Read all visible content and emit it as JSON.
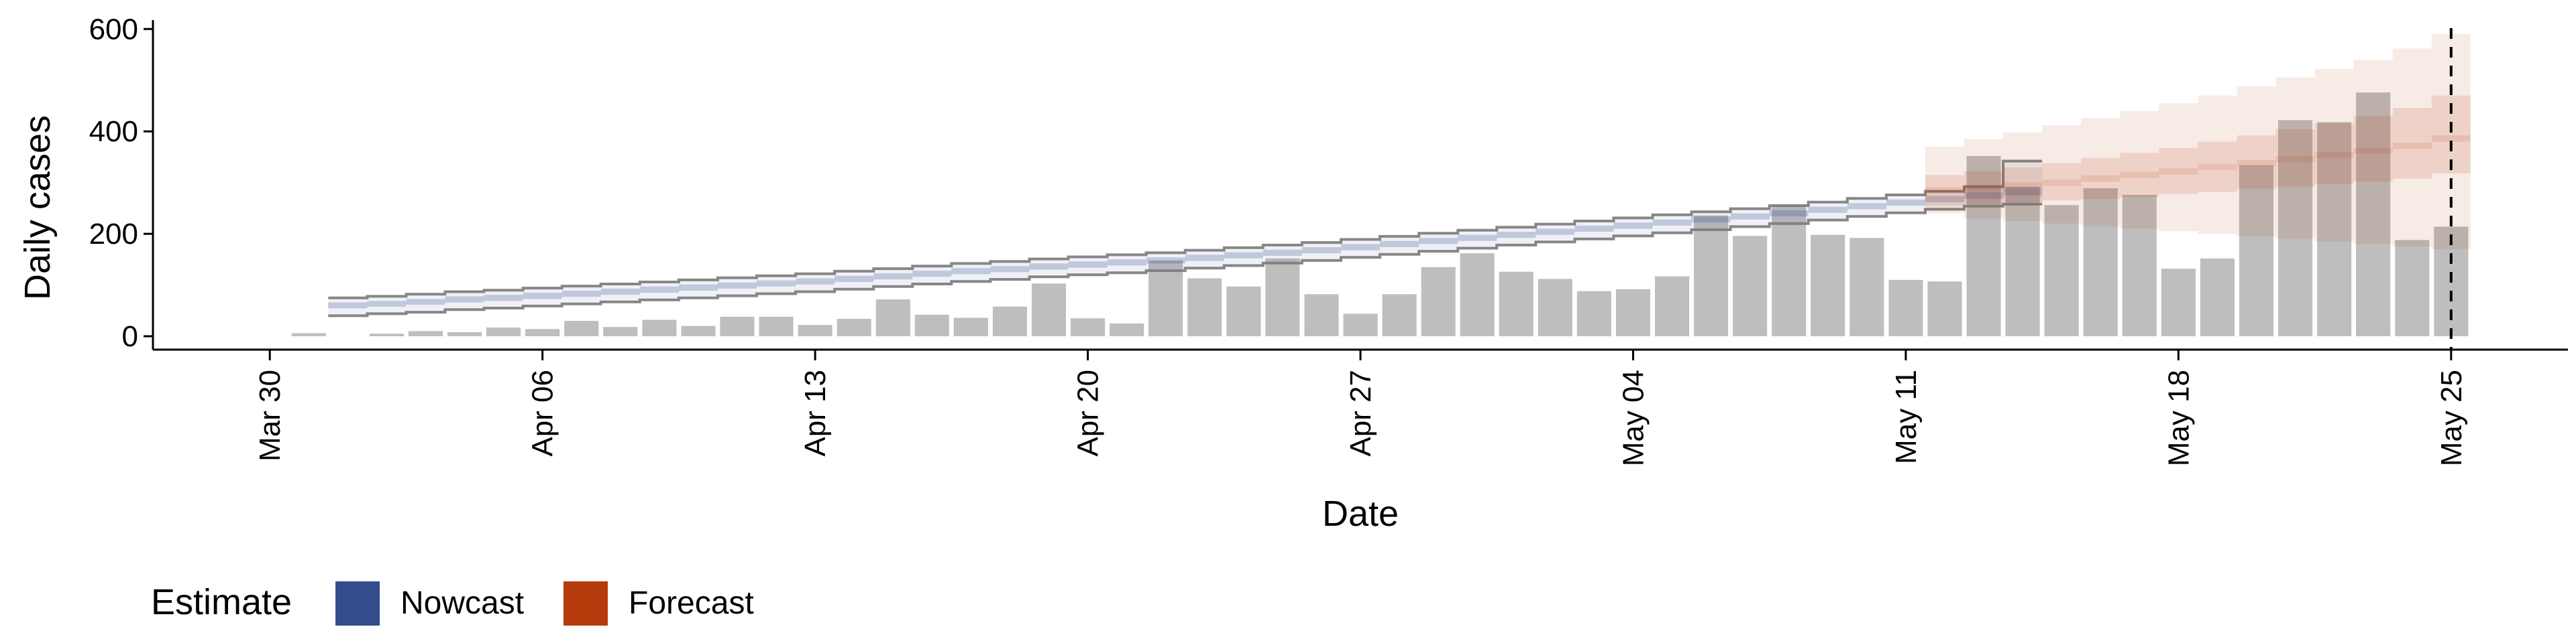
{
  "chart_data": {
    "type": "bar",
    "xlabel": "Date",
    "ylabel": "Daily cases",
    "ylim": [
      0,
      620
    ],
    "yticks": [
      "0",
      "200",
      "400",
      "600"
    ],
    "ytick_values": [
      0,
      200,
      400,
      600
    ],
    "x_range": [
      "2020-03-27",
      "2020-05-28"
    ],
    "xticks": [
      {
        "date": "2020-03-30",
        "label": "Mar 30"
      },
      {
        "date": "2020-04-06",
        "label": "Apr 06"
      },
      {
        "date": "2020-04-13",
        "label": "Apr 13"
      },
      {
        "date": "2020-04-20",
        "label": "Apr 20"
      },
      {
        "date": "2020-04-27",
        "label": "Apr 27"
      },
      {
        "date": "2020-05-04",
        "label": "May 04"
      },
      {
        "date": "2020-05-11",
        "label": "May 11"
      },
      {
        "date": "2020-05-18",
        "label": "May 18"
      },
      {
        "date": "2020-05-25",
        "label": "May 25"
      }
    ],
    "reference_line": {
      "date": "2020-05-25",
      "style": "dashed"
    },
    "grid": false,
    "legend": {
      "title": "Estimate",
      "position": "bottom-left",
      "entries": [
        {
          "label": "Nowcast",
          "color": "#344b8c"
        },
        {
          "label": "Forecast",
          "color": "#b53a0c"
        }
      ]
    },
    "bar_color": "#bebebe",
    "bars": {
      "start_date": "2020-03-31",
      "values": [
        6,
        0,
        5,
        10,
        8,
        17,
        14,
        30,
        18,
        32,
        20,
        38,
        38,
        22,
        34,
        72,
        42,
        36,
        58,
        103,
        35,
        25,
        148,
        113,
        97,
        152,
        82,
        44,
        82,
        135,
        162,
        126,
        112,
        88,
        92,
        117,
        236,
        196,
        256,
        198,
        192,
        110,
        107,
        352,
        292,
        256,
        289,
        276,
        132,
        152,
        334,
        422,
        418,
        476,
        188,
        214
      ]
    },
    "series": [
      {
        "name": "Nowcast",
        "color": "#344b8c",
        "start_date": "2020-04-01",
        "median": [
          60,
          63,
          67,
          72,
          75,
          79,
          83,
          87,
          91,
          95,
          99,
          103,
          107,
          112,
          117,
          122,
          127,
          131,
          136,
          140,
          144,
          148,
          153,
          158,
          163,
          168,
          174,
          180,
          186,
          192,
          198,
          204,
          210,
          216,
          222,
          228,
          234,
          240,
          247,
          254,
          261,
          268,
          275,
          282
        ],
        "lower_50": [
          55,
          58,
          62,
          66,
          69,
          73,
          77,
          81,
          85,
          89,
          93,
          97,
          101,
          106,
          111,
          116,
          121,
          125,
          130,
          134,
          138,
          142,
          147,
          152,
          157,
          162,
          168,
          174,
          180,
          186,
          192,
          198,
          204,
          210,
          216,
          222,
          228,
          234,
          241,
          248,
          255,
          262,
          268,
          274
        ],
        "upper_50": [
          66,
          69,
          73,
          78,
          81,
          85,
          89,
          93,
          97,
          101,
          105,
          109,
          113,
          118,
          123,
          128,
          133,
          137,
          142,
          146,
          150,
          154,
          159,
          164,
          169,
          174,
          180,
          186,
          192,
          198,
          204,
          210,
          216,
          222,
          228,
          234,
          240,
          246,
          253,
          260,
          267,
          274,
          282,
          290
        ],
        "lower_90": [
          40,
          44,
          47,
          52,
          55,
          59,
          63,
          67,
          71,
          75,
          79,
          83,
          87,
          92,
          97,
          102,
          107,
          111,
          116,
          120,
          124,
          128,
          133,
          138,
          143,
          148,
          154,
          160,
          166,
          172,
          178,
          184,
          190,
          196,
          202,
          208,
          214,
          220,
          227,
          234,
          241,
          248,
          254,
          258
        ],
        "upper_90": [
          75,
          78,
          82,
          87,
          90,
          94,
          98,
          102,
          106,
          110,
          114,
          118,
          122,
          127,
          132,
          137,
          142,
          146,
          151,
          155,
          159,
          163,
          168,
          173,
          178,
          183,
          189,
          195,
          201,
          207,
          213,
          219,
          225,
          231,
          237,
          243,
          249,
          255,
          262,
          269,
          276,
          283,
          292,
          342
        ]
      },
      {
        "name": "Forecast",
        "color": "#b53a0c",
        "start_date": "2020-05-12",
        "median": [
          285,
          290,
          295,
          300,
          308,
          315,
          322,
          330,
          338,
          346,
          354,
          362,
          372,
          386
        ],
        "lower_50": [
          255,
          258,
          262,
          265,
          268,
          272,
          278,
          282,
          288,
          292,
          298,
          302,
          308,
          318
        ],
        "upper_50": [
          315,
          322,
          330,
          338,
          348,
          358,
          368,
          380,
          392,
          404,
          416,
          430,
          446,
          470
        ],
        "lower_90": [
          240,
          230,
          225,
          220,
          215,
          210,
          205,
          200,
          195,
          190,
          185,
          180,
          175,
          170
        ],
        "upper_90": [
          370,
          385,
          398,
          412,
          426,
          440,
          455,
          470,
          488,
          505,
          522,
          540,
          562,
          590
        ]
      }
    ]
  }
}
